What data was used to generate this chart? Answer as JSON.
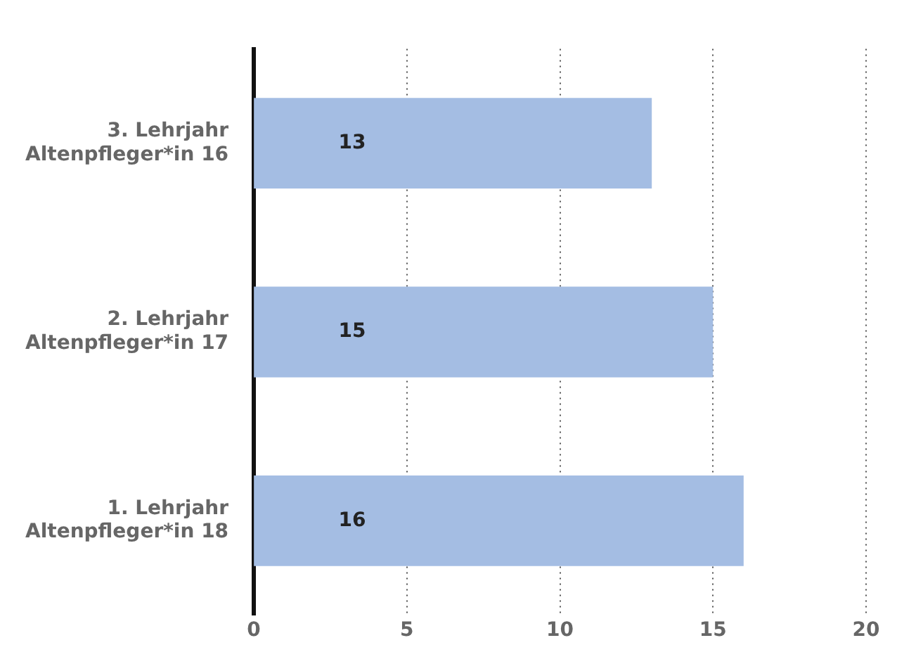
{
  "chart_data": {
    "type": "bar",
    "orientation": "horizontal",
    "categories": [
      "3. Lehrjahr\nAltenpfleger*in 16",
      "2. Lehrjahr\nAltenpfleger*in 17",
      "1. Lehrjahr\nAltenpfleger*in 18"
    ],
    "values": [
      13,
      15,
      16
    ],
    "color": "#a4bde3",
    "data_labels": true,
    "xlim": [
      0,
      20
    ],
    "xticks": [
      0,
      5,
      10,
      15,
      20
    ],
    "grid": "x",
    "legend": false
  }
}
